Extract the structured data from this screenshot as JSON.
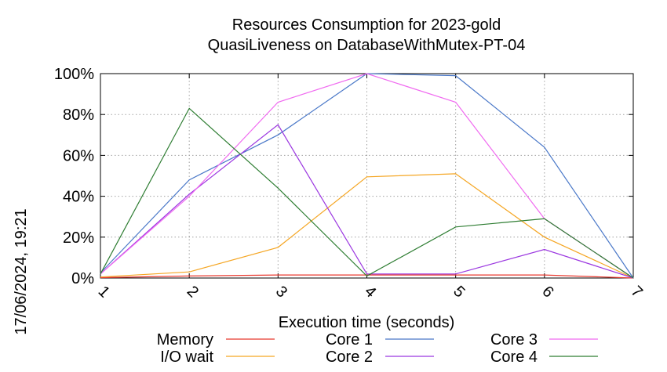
{
  "chart_data": {
    "type": "line",
    "title": "Resources Consumption for 2023-gold",
    "subtitle": "QuasiLiveness on DatabaseWithMutex-PT-04",
    "xlabel": "Execution time (seconds)",
    "ylabel": "",
    "x": [
      1,
      2,
      3,
      4,
      5,
      6,
      7
    ],
    "xlim": [
      1,
      7
    ],
    "ylim": [
      0,
      100
    ],
    "x_ticks": [
      "1",
      "2",
      "3",
      "4",
      "5",
      "6",
      "7"
    ],
    "y_ticks": [
      "0%",
      "20%",
      "40%",
      "60%",
      "80%",
      "100%"
    ],
    "y_tick_values": [
      0,
      20,
      40,
      60,
      80,
      100
    ],
    "grid": true,
    "legend_position": "bottom",
    "series": [
      {
        "name": "Memory",
        "color": "#e8392f",
        "values": [
          0.2,
          1.0,
          1.5,
          1.5,
          1.5,
          1.5,
          0
        ]
      },
      {
        "name": "I/O wait",
        "color": "#f5a623",
        "values": [
          0.5,
          3.0,
          15.0,
          49.5,
          51.0,
          20.0,
          0
        ]
      },
      {
        "name": "Core 1",
        "color": "#4a78c8",
        "values": [
          2.5,
          48.0,
          70.0,
          100.0,
          99.0,
          64.0,
          0
        ]
      },
      {
        "name": "Core 2",
        "color": "#9b37e0",
        "values": [
          2.0,
          41.0,
          75.0,
          2.0,
          2.0,
          14.0,
          0
        ]
      },
      {
        "name": "Core 3",
        "color": "#f06af0",
        "values": [
          2.0,
          40.0,
          86.0,
          100.0,
          86.0,
          29.0,
          0
        ]
      },
      {
        "name": "Core 4",
        "color": "#2e7d32",
        "values": [
          2.0,
          83.0,
          44.0,
          1.0,
          25.0,
          29.0,
          0
        ]
      }
    ]
  },
  "timestamp": "17/06/2024, 19:21"
}
